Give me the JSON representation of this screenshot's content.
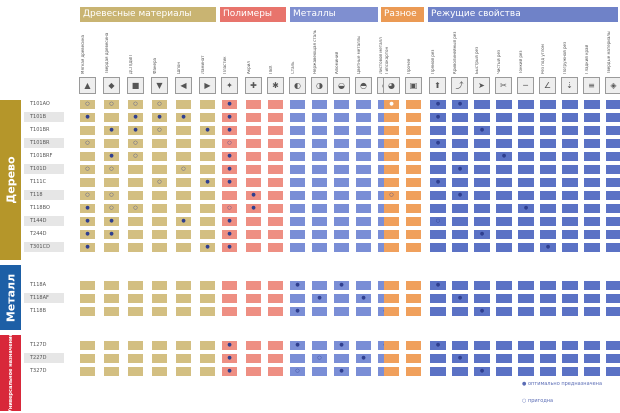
{
  "groups": [
    {
      "key": "wood",
      "label": "Древесные материалы"
    },
    {
      "key": "poly",
      "label": "Полимеры"
    },
    {
      "key": "metal",
      "label": "Металлы"
    },
    {
      "key": "misc",
      "label": "Разное"
    },
    {
      "key": "cut",
      "label": "Режущие свойства"
    }
  ],
  "column_titles": [
    "Мягкая древесина",
    "Твёрдая древесина",
    "ДСП/ДВП",
    "Фанера",
    "Шпон",
    "Ламинат",
    "Пластик",
    "Акрил",
    "ПВХ",
    "Сталь",
    "Нержавеющая сталь",
    "Алюминий",
    "Цветные металлы",
    "Листовой металл",
    "Гипсокартон",
    "Прочее",
    "Прямой рез",
    "Криволинейный рез",
    "Быстрый рез",
    "Чистый рез",
    "Тонкий рез",
    "Рез под углом",
    "Погружной рез",
    "Гладкий край",
    "Твёрдые материалы"
  ],
  "row_groups": [
    {
      "key": "wood",
      "label": "Дерево",
      "rows": [
        "T101AO",
        "T101B",
        "T101BR",
        "T101BR",
        "T101BRF",
        "T101D",
        "T111C",
        "T118",
        "T118BO",
        "T144D",
        "T244D",
        "T301CD"
      ]
    },
    {
      "key": "metal",
      "label": "Металл",
      "rows": [
        "T118A",
        "T118AF",
        "T118B"
      ]
    },
    {
      "key": "red",
      "label": "Универсальное назначение",
      "rows": [
        "T127D",
        "T227D",
        "T327D"
      ]
    }
  ],
  "legend": {
    "optimal": "● оптимально предназначена",
    "suitable": "○ пригодна"
  },
  "colors": {
    "wood": "#d3bf82",
    "poly": "#ee8f83",
    "metal": "#7a8ed6",
    "misc": "#f0a05c",
    "cut": "#5b72c5",
    "highlight": "#ffffff"
  }
}
